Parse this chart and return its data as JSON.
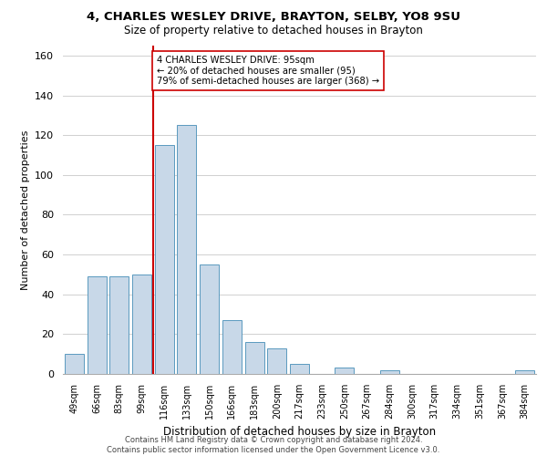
{
  "title_line1": "4, CHARLES WESLEY DRIVE, BRAYTON, SELBY, YO8 9SU",
  "title_line2": "Size of property relative to detached houses in Brayton",
  "xlabel": "Distribution of detached houses by size in Brayton",
  "ylabel": "Number of detached properties",
  "bar_labels": [
    "49sqm",
    "66sqm",
    "83sqm",
    "99sqm",
    "116sqm",
    "133sqm",
    "150sqm",
    "166sqm",
    "183sqm",
    "200sqm",
    "217sqm",
    "233sqm",
    "250sqm",
    "267sqm",
    "284sqm",
    "300sqm",
    "317sqm",
    "334sqm",
    "351sqm",
    "367sqm",
    "384sqm"
  ],
  "bar_values": [
    10,
    49,
    49,
    50,
    115,
    125,
    55,
    27,
    16,
    13,
    5,
    0,
    3,
    0,
    2,
    0,
    0,
    0,
    0,
    0,
    2
  ],
  "bar_color": "#c8d8e8",
  "bar_edge_color": "#5a9abf",
  "vline_bar_index": 3,
  "vline_color": "#cc0000",
  "annotation_text": "4 CHARLES WESLEY DRIVE: 95sqm\n← 20% of detached houses are smaller (95)\n79% of semi-detached houses are larger (368) →",
  "annotation_box_color": "#ffffff",
  "annotation_box_edge_color": "#cc0000",
  "ylim": [
    0,
    165
  ],
  "yticks": [
    0,
    20,
    40,
    60,
    80,
    100,
    120,
    140,
    160
  ],
  "footer_line1": "Contains HM Land Registry data © Crown copyright and database right 2024.",
  "footer_line2": "Contains public sector information licensed under the Open Government Licence v3.0.",
  "background_color": "#ffffff",
  "grid_color": "#d0d0d0"
}
